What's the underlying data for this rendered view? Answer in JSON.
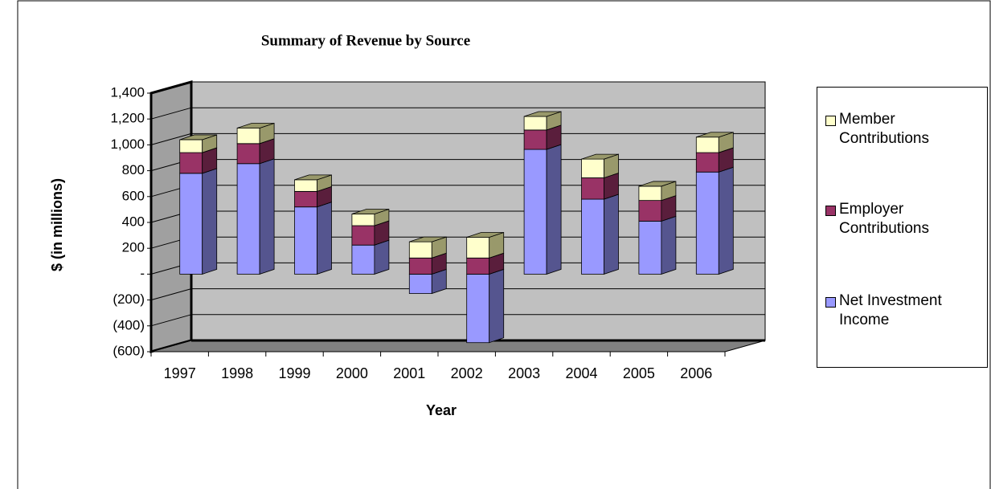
{
  "chart_data": {
    "type": "bar3d-stacked",
    "title": "Summary of Revenue by Source",
    "x_label": "Year",
    "y_label": "$ (in millions)",
    "categories": [
      "1997",
      "1998",
      "1999",
      "2000",
      "2001",
      "2002",
      "2003",
      "2004",
      "2005",
      "2006"
    ],
    "series": [
      {
        "name": "Net Investment Income",
        "color": "#9999ff",
        "side_color": "#55558f",
        "values": [
          780,
          855,
          520,
          225,
          -150,
          -530,
          965,
          580,
          410,
          790
        ]
      },
      {
        "name": "Employer Contributions",
        "color": "#993366",
        "side_color": "#5a1e3c",
        "values": [
          160,
          155,
          120,
          150,
          125,
          125,
          150,
          165,
          160,
          150
        ]
      },
      {
        "name": "Member Contributions",
        "color": "#ffffcc",
        "side_color": "#99996b",
        "values": [
          100,
          120,
          90,
          90,
          125,
          160,
          105,
          145,
          110,
          120
        ]
      }
    ],
    "ylim": [
      -600,
      1400
    ],
    "yticks": [
      {
        "value": -600,
        "label": "(600)"
      },
      {
        "value": -400,
        "label": "(400)"
      },
      {
        "value": -200,
        "label": "(200)"
      },
      {
        "value": 0,
        "label": "-"
      },
      200,
      400,
      600,
      800,
      {
        "value": 1000,
        "label": "1,000"
      },
      {
        "value": 1200,
        "label": "1,200"
      },
      {
        "value": 1400,
        "label": "1,400"
      }
    ],
    "grid": true,
    "legend": "right"
  }
}
